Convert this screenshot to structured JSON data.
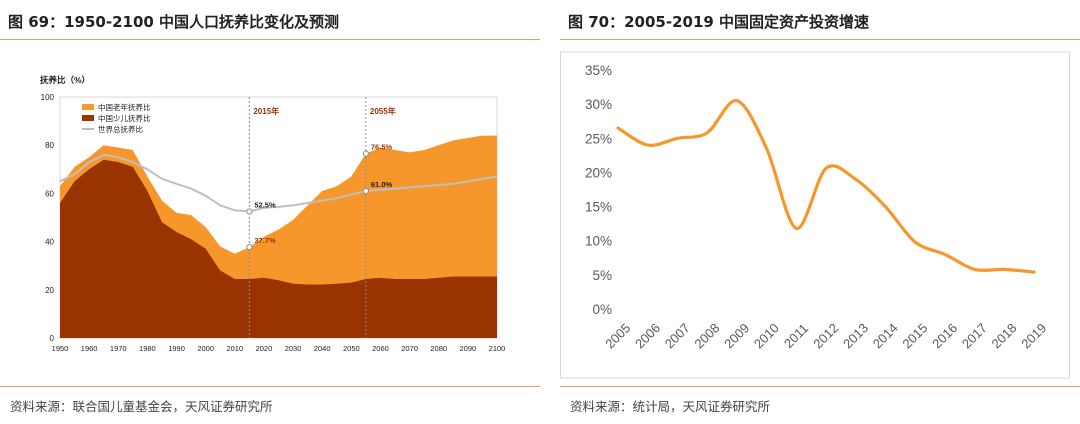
{
  "left": {
    "title": "图 69：1950-2100 中国人口抚养比变化及预测",
    "source": "资料来源：联合国儿童基金会，天风证券研究所"
  },
  "right": {
    "title": "图 70：2005-2019 中国固定资产投资增速",
    "source": "资料来源：统计局，天风证券研究所"
  },
  "chart_data": [
    {
      "type": "area",
      "ylabel": "抚养比（%）",
      "xlim": [
        1950,
        2100
      ],
      "ylim": [
        0,
        100
      ],
      "x_ticks": [
        1950,
        1960,
        1970,
        1980,
        1990,
        2000,
        2010,
        2020,
        2030,
        2040,
        2050,
        2060,
        2070,
        2080,
        2090,
        2100
      ],
      "y_ticks": [
        0,
        20,
        40,
        60,
        80,
        100
      ],
      "legend": {
        "position": "top-left",
        "entries": [
          "中国老年抚养比",
          "中国少儿抚养比",
          "世界总抚养比"
        ]
      },
      "series": [
        {
          "name": "中国少儿抚养比",
          "color": "#993300",
          "points": [
            [
              1950,
              56
            ],
            [
              1955,
              65
            ],
            [
              1960,
              70
            ],
            [
              1965,
              74
            ],
            [
              1970,
              73
            ],
            [
              1975,
              71
            ],
            [
              1980,
              61
            ],
            [
              1985,
              48
            ],
            [
              1990,
              44
            ],
            [
              1995,
              41
            ],
            [
              2000,
              37
            ],
            [
              2005,
              28
            ],
            [
              2010,
              24.5
            ],
            [
              2015,
              24.5
            ],
            [
              2020,
              25
            ],
            [
              2025,
              24
            ],
            [
              2030,
              22.5
            ],
            [
              2035,
              22.2
            ],
            [
              2040,
              22.2
            ],
            [
              2045,
              22.5
            ],
            [
              2050,
              23
            ],
            [
              2055,
              24.5
            ],
            [
              2060,
              25
            ],
            [
              2065,
              24.5
            ],
            [
              2070,
              24.5
            ],
            [
              2075,
              24.5
            ],
            [
              2080,
              25
            ],
            [
              2085,
              25.5
            ],
            [
              2090,
              25.5
            ],
            [
              2095,
              25.5
            ],
            [
              2100,
              25.5
            ]
          ]
        },
        {
          "name": "中国老年抚养比",
          "color": "#F7962A",
          "points": [
            [
              1950,
              63
            ],
            [
              1955,
              71
            ],
            [
              1960,
              75
            ],
            [
              1965,
              80
            ],
            [
              1970,
              79
            ],
            [
              1975,
              78
            ],
            [
              1980,
              67
            ],
            [
              1985,
              57
            ],
            [
              1990,
              52
            ],
            [
              1995,
              51
            ],
            [
              2000,
              46
            ],
            [
              2005,
              38
            ],
            [
              2010,
              35
            ],
            [
              2015,
              37.7
            ],
            [
              2020,
              42
            ],
            [
              2025,
              45
            ],
            [
              2030,
              49
            ],
            [
              2035,
              55
            ],
            [
              2040,
              61
            ],
            [
              2045,
              63
            ],
            [
              2050,
              67
            ],
            [
              2055,
              76.5
            ],
            [
              2060,
              79
            ],
            [
              2065,
              78
            ],
            [
              2070,
              77
            ],
            [
              2075,
              78
            ],
            [
              2080,
              80
            ],
            [
              2085,
              82
            ],
            [
              2090,
              83
            ],
            [
              2095,
              84
            ],
            [
              2100,
              84
            ]
          ]
        },
        {
          "name": "世界总抚养比",
          "color": "#BFBFBF",
          "points": [
            [
              1950,
              65
            ],
            [
              1955,
              68
            ],
            [
              1960,
              73
            ],
            [
              1965,
              76
            ],
            [
              1970,
              75
            ],
            [
              1975,
              73
            ],
            [
              1980,
              70
            ],
            [
              1985,
              66
            ],
            [
              1990,
              64
            ],
            [
              1995,
              62
            ],
            [
              2000,
              59
            ],
            [
              2005,
              55
            ],
            [
              2010,
              53
            ],
            [
              2015,
              52.5
            ],
            [
              2020,
              54
            ],
            [
              2025,
              54.5
            ],
            [
              2030,
              55
            ],
            [
              2035,
              56
            ],
            [
              2040,
              57
            ],
            [
              2045,
              58
            ],
            [
              2050,
              59.5
            ],
            [
              2055,
              61
            ],
            [
              2060,
              61.5
            ],
            [
              2065,
              62
            ],
            [
              2070,
              62.5
            ],
            [
              2075,
              63
            ],
            [
              2080,
              63.5
            ],
            [
              2085,
              64
            ],
            [
              2090,
              65
            ],
            [
              2095,
              66
            ],
            [
              2100,
              67
            ]
          ]
        }
      ],
      "markers": [
        {
          "year": 2015,
          "label": "2015年"
        },
        {
          "year": 2055,
          "label": "2055年"
        }
      ],
      "annotations": [
        {
          "x": 2015,
          "y": 52.5,
          "text": "52.5%",
          "color": "#222222"
        },
        {
          "x": 2015,
          "y": 37.7,
          "text": "37.7%",
          "color": "#993300"
        },
        {
          "x": 2055,
          "y": 76.5,
          "text": "76.5%",
          "color": "#993300"
        },
        {
          "x": 2055,
          "y": 61.0,
          "text": "61.0%",
          "color": "#222222"
        }
      ]
    },
    {
      "type": "line",
      "categories": [
        "2005",
        "2006",
        "2007",
        "2008",
        "2009",
        "2010",
        "2011",
        "2012",
        "2013",
        "2014",
        "2015",
        "2016",
        "2017",
        "2018",
        "2019"
      ],
      "series": [
        {
          "color": "#F7962A",
          "values": [
            26.5,
            24.0,
            25.0,
            25.8,
            30.5,
            23.5,
            11.8,
            20.6,
            19.0,
            15.0,
            9.8,
            8.0,
            5.8,
            5.8,
            5.4
          ]
        }
      ],
      "ylim": [
        0,
        35
      ],
      "y_ticks": [
        "0%",
        "5%",
        "10%",
        "15%",
        "20%",
        "25%",
        "30%",
        "35%"
      ],
      "grid": false,
      "legend": "none"
    }
  ]
}
